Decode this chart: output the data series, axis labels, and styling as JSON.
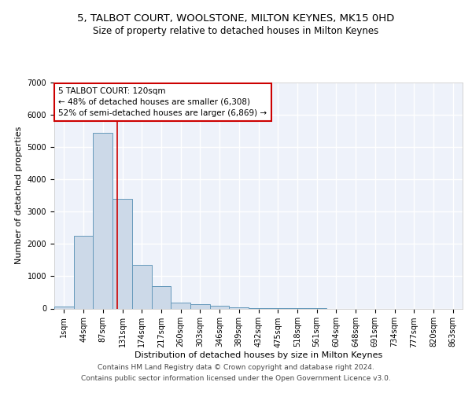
{
  "title": "5, TALBOT COURT, WOOLSTONE, MILTON KEYNES, MK15 0HD",
  "subtitle": "Size of property relative to detached houses in Milton Keynes",
  "xlabel": "Distribution of detached houses by size in Milton Keynes",
  "ylabel": "Number of detached properties",
  "footer_line1": "Contains HM Land Registry data © Crown copyright and database right 2024.",
  "footer_line2": "Contains public sector information licensed under the Open Government Licence v3.0.",
  "bin_labels": [
    "1sqm",
    "44sqm",
    "87sqm",
    "131sqm",
    "174sqm",
    "217sqm",
    "260sqm",
    "303sqm",
    "346sqm",
    "389sqm",
    "432sqm",
    "475sqm",
    "518sqm",
    "561sqm",
    "604sqm",
    "648sqm",
    "691sqm",
    "734sqm",
    "777sqm",
    "820sqm",
    "863sqm"
  ],
  "bar_values": [
    55,
    2250,
    5450,
    3400,
    1350,
    700,
    175,
    130,
    75,
    40,
    10,
    5,
    2,
    1,
    0,
    0,
    0,
    0,
    0,
    0,
    0
  ],
  "bar_color": "#ccd9e8",
  "bar_edge_color": "#6699bb",
  "background_color": "#eef2fa",
  "grid_color": "#ffffff",
  "ylim": [
    0,
    7000
  ],
  "yticks": [
    0,
    1000,
    2000,
    3000,
    4000,
    5000,
    6000,
    7000
  ],
  "annotation_text": "5 TALBOT COURT: 120sqm\n← 48% of detached houses are smaller (6,308)\n52% of semi-detached houses are larger (6,869) →",
  "annotation_box_color": "#ffffff",
  "annotation_box_edge": "#cc0000",
  "red_line_color": "#cc0000",
  "title_fontsize": 9.5,
  "subtitle_fontsize": 8.5,
  "axis_label_fontsize": 8,
  "tick_fontsize": 7,
  "annotation_fontsize": 7.5,
  "footer_fontsize": 6.5
}
